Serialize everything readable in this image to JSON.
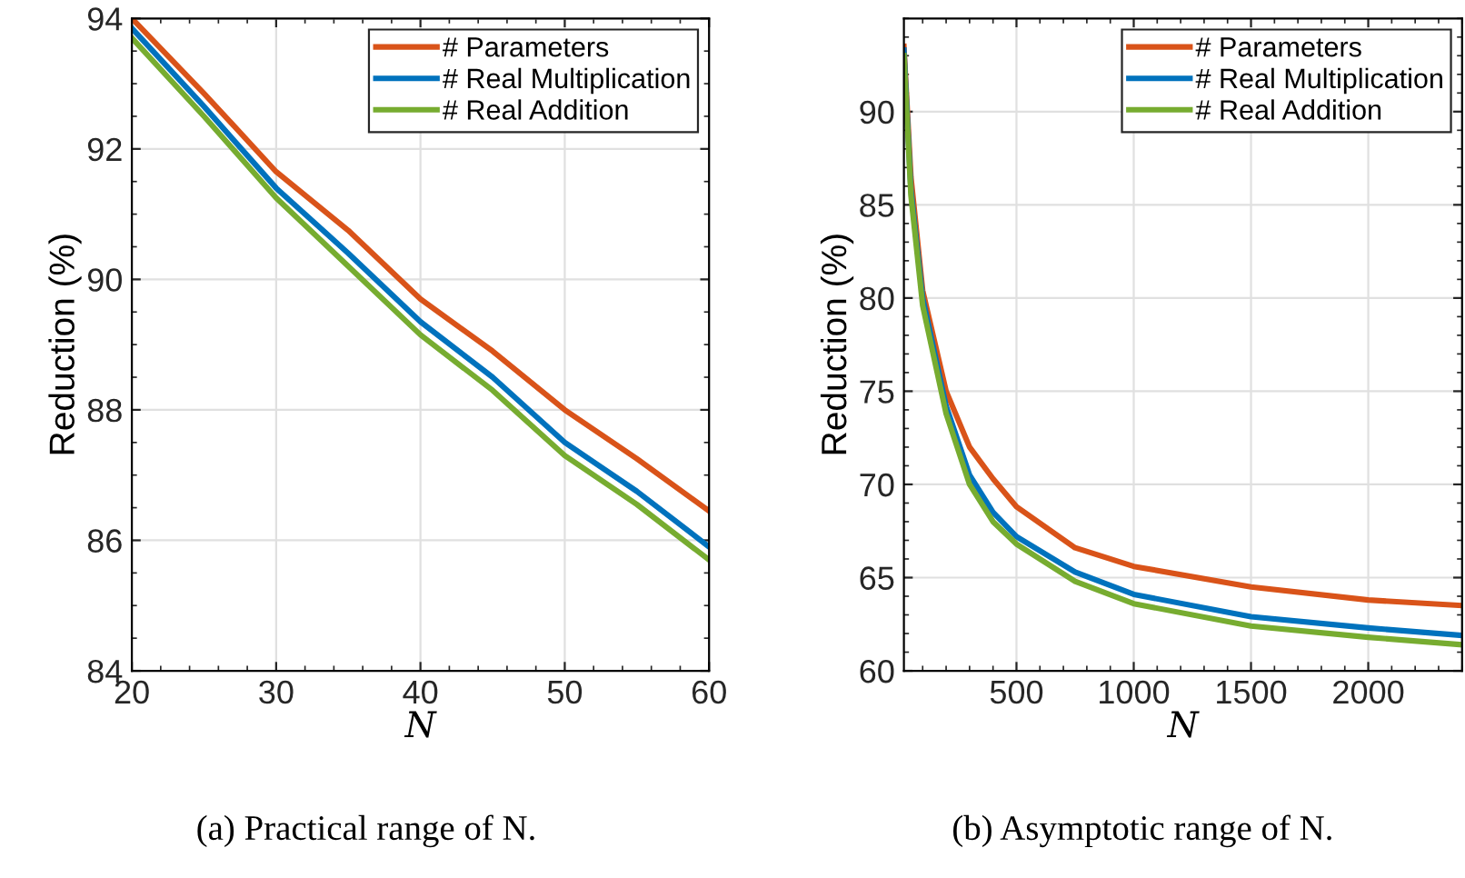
{
  "chart_data": [
    {
      "type": "line",
      "xlabel": "N",
      "ylabel": "Reduction (%)",
      "annotations": [
        "(a) Practical range of N."
      ],
      "x": [
        20,
        25,
        30,
        35,
        40,
        45,
        50,
        55,
        60
      ],
      "series": [
        {
          "name": "# Parameters",
          "color": "#d95319",
          "values": [
            94.0,
            92.85,
            91.65,
            90.75,
            89.7,
            88.9,
            88.0,
            87.25,
            86.45
          ]
        },
        {
          "name": "# Real Multiplication",
          "color": "#0072bd",
          "values": [
            93.85,
            92.65,
            91.4,
            90.4,
            89.35,
            88.5,
            87.5,
            86.75,
            85.9
          ]
        },
        {
          "name": "# Real Addition",
          "color": "#77ac30",
          "values": [
            93.7,
            92.5,
            91.25,
            90.2,
            89.15,
            88.3,
            87.3,
            86.55,
            85.7
          ]
        }
      ],
      "xlim": [
        20,
        60
      ],
      "xticks": [
        20,
        30,
        40,
        50,
        60
      ],
      "ylim": [
        84,
        94
      ],
      "yticks": [
        84,
        86,
        88,
        90,
        92,
        94
      ],
      "grid": true,
      "legend": "top right",
      "marker": "none",
      "line_style": "solid"
    },
    {
      "type": "line",
      "xlabel": "N",
      "ylabel": "Reduction (%)",
      "annotations": [
        "(b) Asymptotic range of N."
      ],
      "x": [
        20,
        50,
        100,
        200,
        300,
        400,
        500,
        750,
        1000,
        1500,
        2000,
        2400
      ],
      "series": [
        {
          "name": "# Parameters",
          "color": "#d95319",
          "values": [
            93.5,
            86.5,
            80.4,
            75.0,
            72.0,
            70.3,
            68.8,
            66.6,
            65.6,
            64.5,
            63.8,
            63.5
          ]
        },
        {
          "name": "# Real Multiplication",
          "color": "#0072bd",
          "values": [
            93.3,
            85.8,
            80.0,
            74.2,
            70.5,
            68.5,
            67.2,
            65.3,
            64.1,
            62.9,
            62.3,
            61.9
          ]
        },
        {
          "name": "# Real Addition",
          "color": "#77ac30",
          "values": [
            93.0,
            85.5,
            79.6,
            73.8,
            70.0,
            68.0,
            66.8,
            64.8,
            63.6,
            62.4,
            61.8,
            61.4
          ]
        }
      ],
      "xlim": [
        20,
        2400
      ],
      "xticks": [
        500,
        1000,
        1500,
        2000
      ],
      "ylim": [
        60,
        95
      ],
      "yticks": [
        60,
        65,
        70,
        75,
        80,
        85,
        90
      ],
      "grid": true,
      "legend": "top right",
      "marker": "none",
      "line_style": "solid"
    }
  ]
}
